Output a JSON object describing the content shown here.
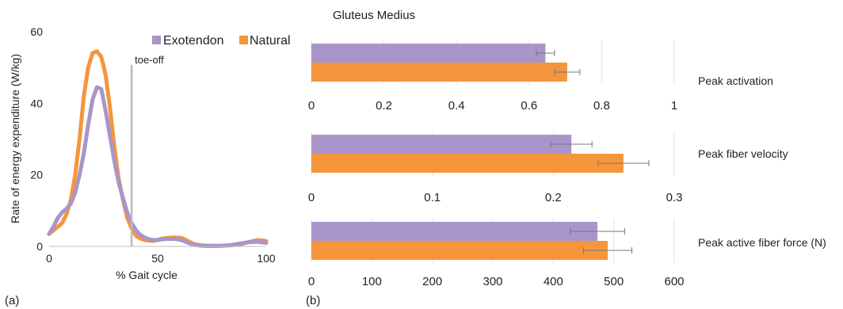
{
  "colors": {
    "exotendon": "#a995c9",
    "natural": "#f5953c",
    "toe_off_line": "#bbbbbb",
    "error_bar": "#777777",
    "axis_text": "#222222"
  },
  "panel_labels": {
    "a": "(a)",
    "b": "(b)"
  },
  "chart_data": [
    {
      "type": "line",
      "panel": "(a)",
      "title": "",
      "xlabel": "% Gait cycle",
      "ylabel": "Rate of energy expenditure (W/kg)",
      "xlim": [
        0,
        100
      ],
      "ylim": [
        0,
        60
      ],
      "xticks": [
        0,
        50,
        100
      ],
      "yticks": [
        0,
        20,
        40,
        60
      ],
      "grid": false,
      "legend": "top-right",
      "annotation": {
        "text": "toe-off",
        "x": 38
      },
      "series": [
        {
          "name": "Natural",
          "color": "natural",
          "x": [
            0,
            2,
            4,
            6,
            8,
            10,
            12,
            14,
            16,
            18,
            20,
            22,
            24,
            26,
            28,
            30,
            32,
            34,
            36,
            38,
            40,
            42,
            44,
            46,
            48,
            50,
            52,
            55,
            58,
            61,
            64,
            67,
            70,
            73,
            76,
            80,
            84,
            88,
            92,
            96,
            100
          ],
          "y": [
            3.5,
            4.5,
            5.5,
            6.5,
            9,
            13,
            20,
            30,
            42,
            50,
            54,
            54.5,
            53,
            48,
            39,
            28,
            19,
            13,
            8,
            5,
            3,
            2.2,
            1.8,
            1.6,
            1.5,
            1.8,
            2.2,
            2.4,
            2.5,
            2.4,
            1.5,
            0.6,
            0.3,
            0.2,
            0.2,
            0.2,
            0.3,
            0.6,
            1.2,
            1.8,
            1.5
          ]
        },
        {
          "name": "Exotendon",
          "color": "exotendon",
          "x": [
            0,
            2,
            4,
            6,
            8,
            10,
            12,
            14,
            16,
            18,
            20,
            22,
            24,
            26,
            28,
            30,
            32,
            34,
            36,
            38,
            40,
            42,
            44,
            46,
            48,
            50,
            52,
            55,
            58,
            61,
            64,
            67,
            70,
            73,
            76,
            80,
            84,
            88,
            92,
            96,
            100
          ],
          "y": [
            3.5,
            5.5,
            8,
            9.5,
            10.5,
            12,
            15,
            20,
            26,
            34,
            41,
            44.5,
            44,
            38,
            31,
            24,
            18,
            13.5,
            9.5,
            6.5,
            4.5,
            3.2,
            2.5,
            2.0,
            1.8,
            1.8,
            2.0,
            2.1,
            2.1,
            1.8,
            1.0,
            0.4,
            0.2,
            0.1,
            0.1,
            0.2,
            0.4,
            0.8,
            1.2,
            1.3,
            1.0
          ]
        }
      ]
    },
    {
      "type": "bar",
      "orientation": "horizontal",
      "panel": "(b)",
      "title": "Gluteus Medius",
      "grid": true,
      "legend": "shared with (a)",
      "subplots": [
        {
          "label": "Peak activation",
          "xlim": [
            0,
            1
          ],
          "xticks": [
            0,
            0.2,
            0.4,
            0.6,
            0.8,
            1
          ],
          "series": [
            {
              "name": "Exotendon",
              "color": "exotendon",
              "value": 0.645,
              "error": 0.025
            },
            {
              "name": "Natural",
              "color": "natural",
              "value": 0.705,
              "error": 0.035
            }
          ]
        },
        {
          "label": "Peak fiber velocity",
          "xlim": [
            0,
            0.3
          ],
          "xticks": [
            0,
            0.1,
            0.2,
            0.3
          ],
          "series": [
            {
              "name": "Exotendon",
              "color": "exotendon",
              "value": 0.215,
              "error": 0.017
            },
            {
              "name": "Natural",
              "color": "natural",
              "value": 0.258,
              "error": 0.021
            }
          ]
        },
        {
          "label": "Peak active fiber force (N)",
          "xlim": [
            0,
            600
          ],
          "xticks": [
            0,
            100,
            200,
            300,
            400,
            500,
            600
          ],
          "series": [
            {
              "name": "Exotendon",
              "color": "exotendon",
              "value": 473,
              "error": 45
            },
            {
              "name": "Natural",
              "color": "natural",
              "value": 490,
              "error": 40
            }
          ]
        }
      ]
    }
  ]
}
